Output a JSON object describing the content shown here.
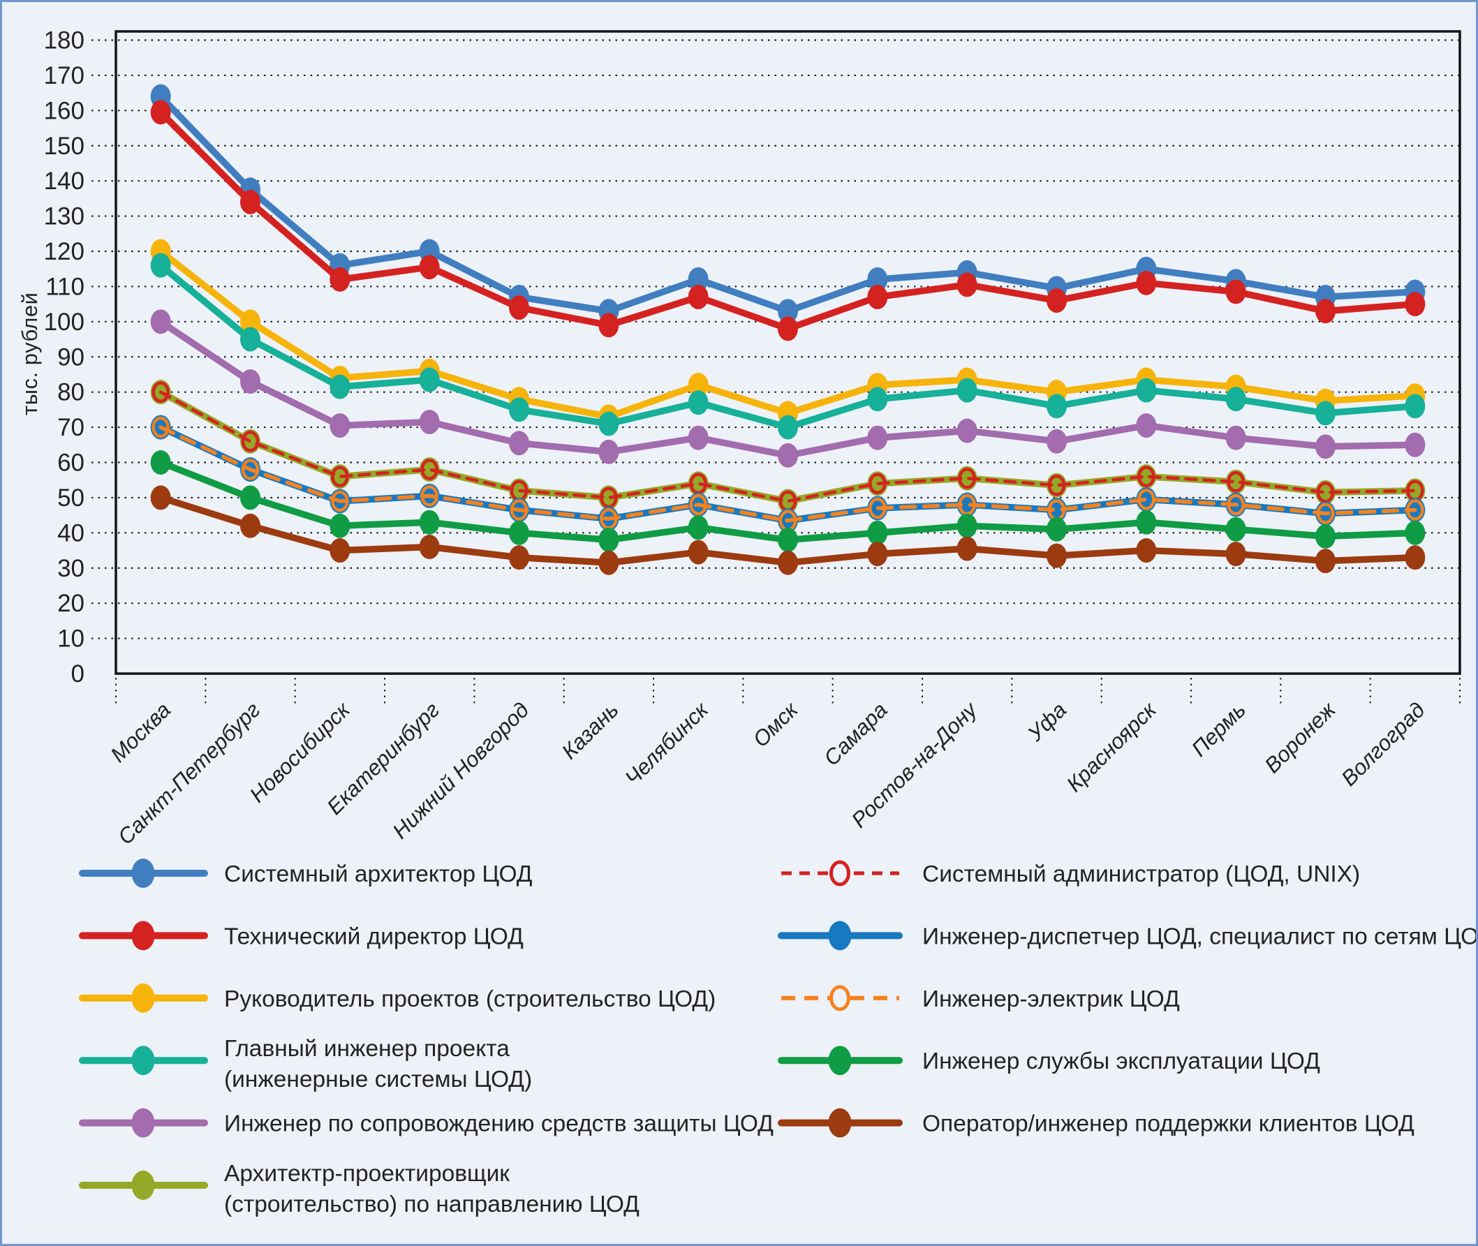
{
  "chart_data": {
    "type": "line",
    "title": "",
    "ylabel": "тыс. рублей",
    "ylim": [
      0,
      180
    ],
    "ytick_step": 10,
    "grid": true,
    "legend_position": "bottom-two-columns",
    "categories": [
      "Москва",
      "Санкт-Петербург",
      "Новосибирск",
      "Екатеринбург",
      "Нижний Новгород",
      "Казань",
      "Челябинск",
      "Омск",
      "Самара",
      "Ростов-на-Дону",
      "Уфа",
      "Красноярск",
      "Пермь",
      "Воронеж",
      "Волгоград"
    ],
    "series": [
      {
        "name": "Системный архитектор ЦОД",
        "color": "#407ec0",
        "dash": null,
        "line_width": 9.5,
        "marker": "dot",
        "legend": {
          "col": 0,
          "row": 0,
          "lines": [
            "Системный архитектор ЦОД"
          ]
        },
        "values": [
          164,
          137.5,
          116,
          120,
          107,
          103,
          112,
          103,
          112,
          114,
          109.5,
          115,
          111.5,
          107,
          108.5
        ]
      },
      {
        "name": "Технический директор ЦОД",
        "color": "#d42221",
        "dash": null,
        "line_width": 9.5,
        "marker": "dot",
        "legend": {
          "col": 0,
          "row": 1,
          "lines": [
            "Технический директор ЦОД"
          ]
        },
        "values": [
          159.5,
          134,
          112,
          115.5,
          104,
          99,
          107,
          98,
          107,
          110.5,
          106,
          111,
          108.5,
          103,
          105
        ]
      },
      {
        "name": "Руководитель проектов (строительство ЦОД)",
        "color": "#f6b40a",
        "dash": null,
        "line_width": 9.5,
        "marker": "dot",
        "legend": {
          "col": 0,
          "row": 2,
          "lines": [
            "Руководитель проектов (строительство ЦОД)"
          ]
        },
        "values": [
          120,
          100,
          84,
          86,
          78,
          73,
          82,
          74,
          82,
          83.5,
          80,
          83.5,
          81.5,
          77.5,
          79
        ]
      },
      {
        "name": "Главный инженер проекта (инженерные системы ЦОД)",
        "color": "#17b099",
        "dash": null,
        "line_width": 9.5,
        "marker": "dot",
        "legend": {
          "col": 0,
          "row": 3,
          "lines": [
            "Главный инженер проекта",
            "(инженерные системы ЦОД)"
          ]
        },
        "values": [
          116,
          95,
          81.5,
          83.5,
          75,
          71,
          77,
          70,
          78,
          80.5,
          76,
          80.5,
          78,
          74,
          76
        ]
      },
      {
        "name": "Инженер по сопровождению средств защиты ЦОД",
        "color": "#a26cae",
        "dash": null,
        "line_width": 9.5,
        "marker": "dot",
        "legend": {
          "col": 0,
          "row": 4,
          "lines": [
            "Инженер по сопровождению средств защиты ЦОД"
          ]
        },
        "values": [
          100,
          83,
          70.5,
          71.5,
          65.5,
          63,
          67,
          62,
          67,
          69,
          66,
          70.5,
          67,
          64.5,
          65
        ]
      },
      {
        "name": "Архитектр-проектировщик (строительство) по направлению ЦОД",
        "color": "#95a827",
        "dash": null,
        "line_width": 9.5,
        "marker": "dot",
        "legend": {
          "col": 0,
          "row": 5,
          "lines": [
            "Архитектр-проектировщик",
            "(строительство) по направлению ЦОД"
          ]
        },
        "values": [
          80,
          66,
          56,
          58,
          52,
          50,
          54,
          49,
          54,
          55.5,
          53.5,
          56,
          54.5,
          51.5,
          52
        ]
      },
      {
        "name": "Системный администратор (ЦОД, UNIX)",
        "color": "#d42221",
        "dash": "15 11",
        "line_width": 4.6,
        "marker": "ring",
        "legend": {
          "col": 1,
          "row": 0,
          "lines": [
            "Системный администратор (ЦОД, UNIX)"
          ]
        },
        "values": [
          80,
          66,
          56,
          58,
          52,
          50,
          54,
          49,
          54,
          55.5,
          53.5,
          56,
          54.5,
          51.5,
          52
        ]
      },
      {
        "name": "Инженер-диспетчер ЦОД, специалист по сетям ЦОД",
        "color": "#1879c0",
        "dash": null,
        "line_width": 9.5,
        "marker": "dot",
        "legend": {
          "col": 1,
          "row": 1,
          "lines": [
            "Инженер-диспетчер ЦОД, специалист по сетям ЦОД"
          ]
        },
        "values": [
          70,
          58,
          49,
          50.5,
          46.5,
          44,
          48,
          43.5,
          47,
          48,
          46.5,
          49.5,
          48,
          45.5,
          46.5
        ]
      },
      {
        "name": "Инженер-электрик ЦОД",
        "color": "#f5821f",
        "dash": "20 13",
        "line_width": 5.6,
        "marker": "ring",
        "legend": {
          "col": 1,
          "row": 2,
          "lines": [
            "Инженер-электрик ЦОД"
          ]
        },
        "values": [
          70,
          58,
          49,
          50.5,
          46.5,
          44,
          48,
          43.5,
          47,
          48,
          46.5,
          49.5,
          48,
          45.5,
          46.5
        ]
      },
      {
        "name": "Инженер службы эксплуатации ЦОД",
        "color": "#0f9c44",
        "dash": null,
        "line_width": 9.5,
        "marker": "dot",
        "legend": {
          "col": 1,
          "row": 3,
          "lines": [
            "Инженер службы эксплуатации ЦОД"
          ]
        },
        "values": [
          60,
          50,
          42,
          43,
          40,
          38,
          41.5,
          38,
          40,
          42,
          41,
          43,
          41,
          39,
          40
        ]
      },
      {
        "name": "Оператор/инженер поддержки клиентов ЦОД",
        "color": "#9c3b10",
        "dash": null,
        "line_width": 9.5,
        "marker": "dot",
        "legend": {
          "col": 1,
          "row": 4,
          "lines": [
            "Оператор/инженер поддержки клиентов ЦОД"
          ]
        },
        "values": [
          50,
          42,
          35,
          36,
          33,
          31.5,
          34.5,
          31.5,
          34,
          35.5,
          33.5,
          35,
          34,
          32,
          33
        ]
      }
    ],
    "colors": {
      "background": "#edf1f8",
      "canvas_border": "#7096cd",
      "axis": "#151515",
      "grid": "#1b1b1b",
      "text": "#222222"
    }
  }
}
